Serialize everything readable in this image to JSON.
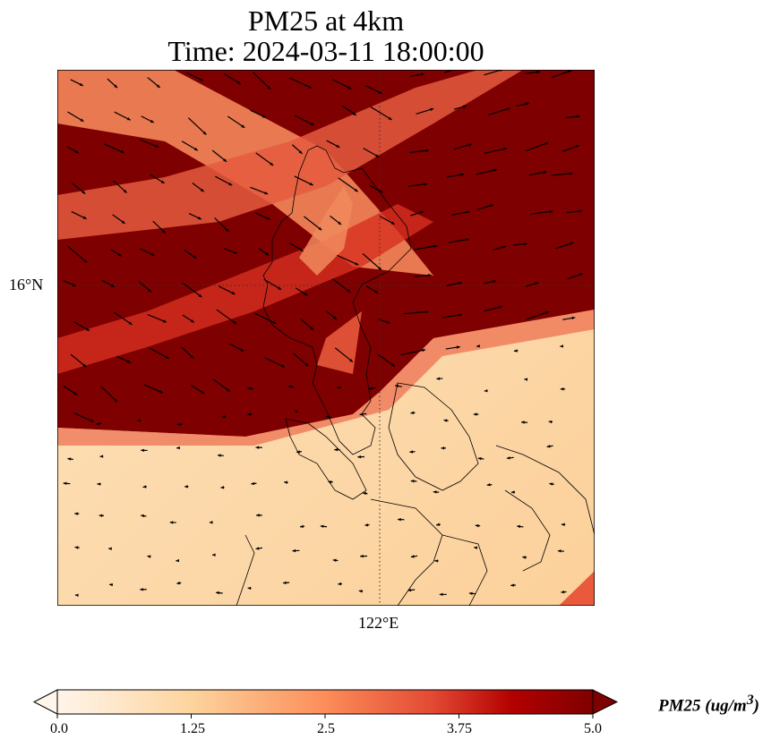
{
  "title": {
    "line1": "PM25 at 4km",
    "line2": "Time: 2024-03-11 18:00:00"
  },
  "axes": {
    "lat_label": "16°N",
    "lon_label": "122°E"
  },
  "colorbar": {
    "label": "PM25 (ug/m",
    "label_sup": "3",
    "label_end": ")",
    "ticks": [
      "0.0",
      "1.25",
      "2.5",
      "3.75",
      "5.0"
    ],
    "range": [
      0,
      5
    ],
    "extend": "both",
    "colors": [
      "#fff5eb",
      "#fdd49e",
      "#fc8d59",
      "#d7301f",
      "#b30000",
      "#7f0000"
    ]
  },
  "colors": {
    "low": "#fdd8a6",
    "high": "#7f0000",
    "mid": "#e9593c"
  }
}
